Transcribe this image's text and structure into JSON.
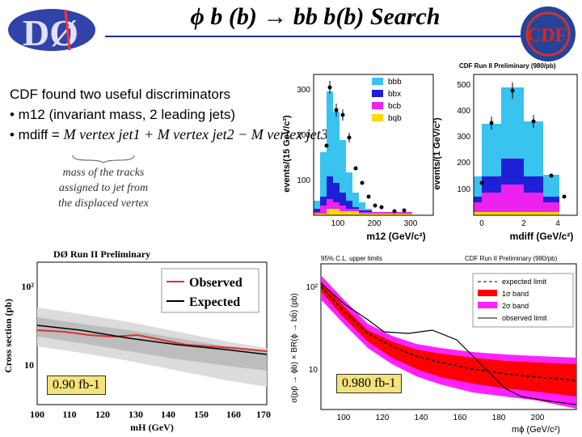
{
  "slide": {
    "title": "ϕ b (b) → bb b(b) Search",
    "logo_left_text": "DØ",
    "logo_right_text": "CDF"
  },
  "text": {
    "line1": "CDF found two useful discriminators",
    "line2": "• m12 (invariant mass, 2 leading jets)",
    "line3_prefix": "• mdiff =",
    "formula": "M vertex jet1 + M vertex jet2 − M vertex jet3",
    "annotation": [
      "mass of the tracks",
      "assigned to jet from",
      "the displaced vertex"
    ]
  },
  "plots": {
    "cdf_m12": {
      "header": "CDF Run II Preliminary (980/pb)",
      "ylabel": "events/(15 GeV/c²)",
      "xlabel": "m12 (GeV/c²)",
      "yticks": [
        "100",
        "200",
        "300"
      ],
      "xticks": [
        "100",
        "200",
        "300"
      ],
      "legend": [
        "bbb",
        "bbx",
        "bcb",
        "bqb"
      ]
    },
    "cdf_mdiff": {
      "ylabel": "events/(1 GeV/c²)",
      "xlabel": "mdiff (GeV/c²)",
      "yticks": [
        "100",
        "200",
        "300",
        "400",
        "500"
      ],
      "xticks": [
        "0",
        "2",
        "4"
      ]
    },
    "d0_limit": {
      "header": "DØ Run II Preliminary",
      "ylabel": "Cross section (pb)",
      "xlabel": "mH (GeV)",
      "yticks": [
        "10",
        "10²"
      ],
      "xticks": [
        "100",
        "110",
        "120",
        "130",
        "140",
        "150",
        "160",
        "170"
      ],
      "legend": [
        "Observed",
        "Expected"
      ],
      "lumi": "0.90 fb-1"
    },
    "cdf_limit": {
      "header_left": "95% C.L. upper limits",
      "header_right": "CDF Run II Preliminary (980/pb)",
      "ylabel": "σ(pp̄ → ϕb) × BR(ϕ → bb̄) (pb)",
      "xlabel": "mϕ (GeV/c²)",
      "yticks": [
        "10",
        "10²"
      ],
      "xticks": [
        "100",
        "120",
        "140",
        "160",
        "180",
        "200"
      ],
      "legend": [
        "expected limit",
        "1σ band",
        "2σ band",
        "observed limit"
      ],
      "lumi": "0.980 fb-1"
    }
  },
  "colors": {
    "bbb": "#39c3ef",
    "bbx": "#1f1fd6",
    "bcb": "#ee22ee",
    "bqb": "#ffd700",
    "band1": "#ff0000",
    "band2": "#ff22ff",
    "observed_d0": "#e03030",
    "title_rule": "#1b2fa0"
  }
}
